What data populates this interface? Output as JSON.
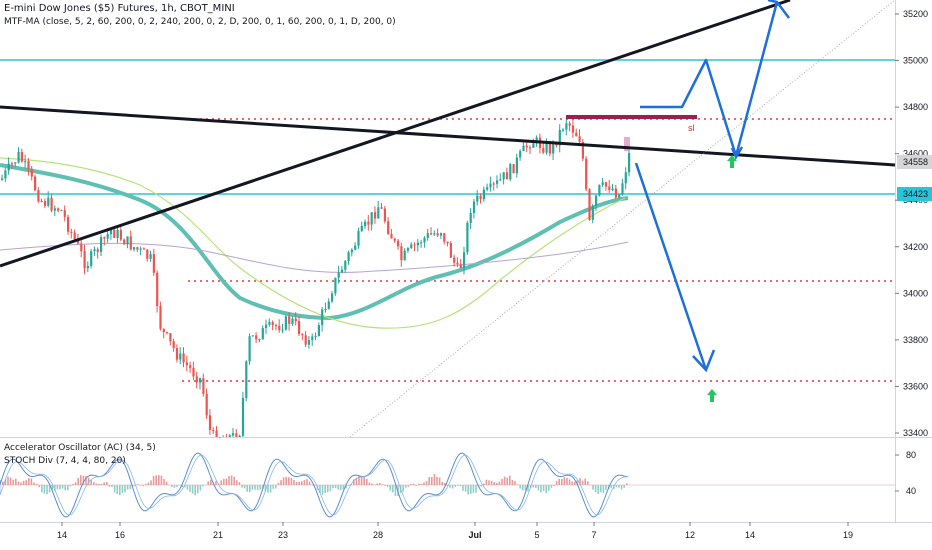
{
  "header": {
    "title": "E-mini Dow Jones ($5) Futures, 1h, CBOT_MINI",
    "indicator": "MTF-MA (close, 5, 2, 60, 200, 0, 2, 240, 200, 0, 2, D, 200, 0, 1, 60, 200, 0, 1, D, 200, 0)"
  },
  "sub_header": {
    "osc1": "Accelerator Oscillator (AC) (34, 5)",
    "osc2": "STOCH Div (7, 4, 4, 80, 20)"
  },
  "colors": {
    "candle_up": "#26a69a",
    "candle_down": "#ef5350",
    "ma_thick": "#5ebfb2",
    "ma_light_green": "#b6e37a",
    "ma_purple": "#b7a3d1",
    "support_line": "#26c6da",
    "dotted_level": "#e53935",
    "trend_black": "#131722",
    "projection_blue": "#1e6fd9",
    "sl_zone": "#a01c4a",
    "up_arrow": "#22c55e"
  },
  "price_axis": {
    "ticks": [
      "35200",
      "35000",
      "34800",
      "34600",
      "34400",
      "34200",
      "34000",
      "33800",
      "33600",
      "33400"
    ],
    "current_price": "34558",
    "support_price": "34423"
  },
  "osc_axis": {
    "ticks": [
      "80",
      "40"
    ]
  },
  "time_axis": {
    "ticks": [
      "14",
      "16",
      "21",
      "23",
      "28",
      "Jul",
      "5",
      "7",
      "12",
      "14",
      "19"
    ]
  },
  "annotations": {
    "sl_label": "sl"
  },
  "chart_data": {
    "type": "candlestick",
    "symbol": "E-mini Dow Jones ($5) Futures",
    "timeframe": "1h",
    "y_range": [
      33380,
      35240
    ],
    "x_dates": [
      "14",
      "16",
      "21",
      "23",
      "28",
      "Jul",
      "5",
      "7",
      "12",
      "14",
      "19"
    ],
    "horizontal_levels": [
      {
        "price": 35000,
        "style": "solid",
        "color": "cyan"
      },
      {
        "price": 34423,
        "style": "solid",
        "color": "cyan"
      },
      {
        "price": 34740,
        "style": "dotted",
        "color": "red"
      },
      {
        "price": 34050,
        "style": "dotted",
        "color": "red"
      },
      {
        "price": 33620,
        "style": "dotted",
        "color": "red"
      }
    ],
    "last_price": 34558,
    "projection_targets": [
      35240,
      33620
    ]
  }
}
